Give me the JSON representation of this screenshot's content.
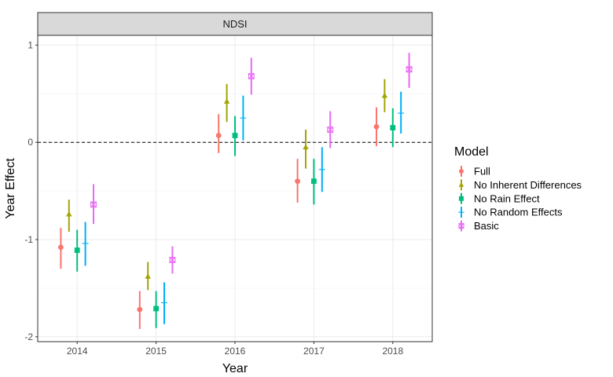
{
  "chart_data": {
    "type": "scatter",
    "panel_title": "NDSI",
    "xlabel": "Year",
    "ylabel": "Year Effect",
    "categories": [
      "2014",
      "2015",
      "2016",
      "2017",
      "2018"
    ],
    "ylim": [
      -2.05,
      1.1
    ],
    "yticks": [
      -2,
      -1,
      0,
      1
    ],
    "ytick_labels": [
      "-2",
      "-1",
      "0",
      "1"
    ],
    "reference_line": 0,
    "legend": {
      "title": "Model",
      "position": "right"
    },
    "series": [
      {
        "name": "Full",
        "color": "#F8766D",
        "shape": "circle",
        "values": [
          -1.08,
          -1.72,
          0.07,
          -0.4,
          0.16
        ],
        "lower": [
          -1.3,
          -1.92,
          -0.11,
          -0.62,
          -0.04
        ],
        "upper": [
          -0.88,
          -1.53,
          0.29,
          -0.17,
          0.36
        ]
      },
      {
        "name": "No Inherent Differences",
        "color": "#A3A500",
        "shape": "triangle",
        "values": [
          -0.74,
          -1.38,
          0.42,
          -0.05,
          0.48
        ],
        "lower": [
          -0.92,
          -1.52,
          0.21,
          -0.27,
          0.31
        ],
        "upper": [
          -0.59,
          -1.23,
          0.6,
          0.13,
          0.65
        ]
      },
      {
        "name": "No Rain Effect",
        "color": "#00BF7D",
        "shape": "square",
        "values": [
          -1.11,
          -1.71,
          0.07,
          -0.4,
          0.15
        ],
        "lower": [
          -1.33,
          -1.91,
          -0.14,
          -0.64,
          -0.05
        ],
        "upper": [
          -0.9,
          -1.53,
          0.27,
          -0.17,
          0.35
        ]
      },
      {
        "name": "No Random Effects",
        "color": "#00B0F6",
        "shape": "plus",
        "values": [
          -1.04,
          -1.65,
          0.25,
          -0.28,
          0.3
        ],
        "lower": [
          -1.27,
          -1.87,
          0.02,
          -0.51,
          0.09
        ],
        "upper": [
          -0.82,
          -1.44,
          0.48,
          -0.05,
          0.52
        ]
      },
      {
        "name": "Basic",
        "color": "#E76BF3",
        "shape": "square-cross",
        "values": [
          -0.64,
          -1.21,
          0.68,
          0.13,
          0.75
        ],
        "lower": [
          -0.84,
          -1.35,
          0.49,
          -0.06,
          0.56
        ],
        "upper": [
          -0.43,
          -1.07,
          0.87,
          0.32,
          0.92
        ]
      }
    ]
  }
}
